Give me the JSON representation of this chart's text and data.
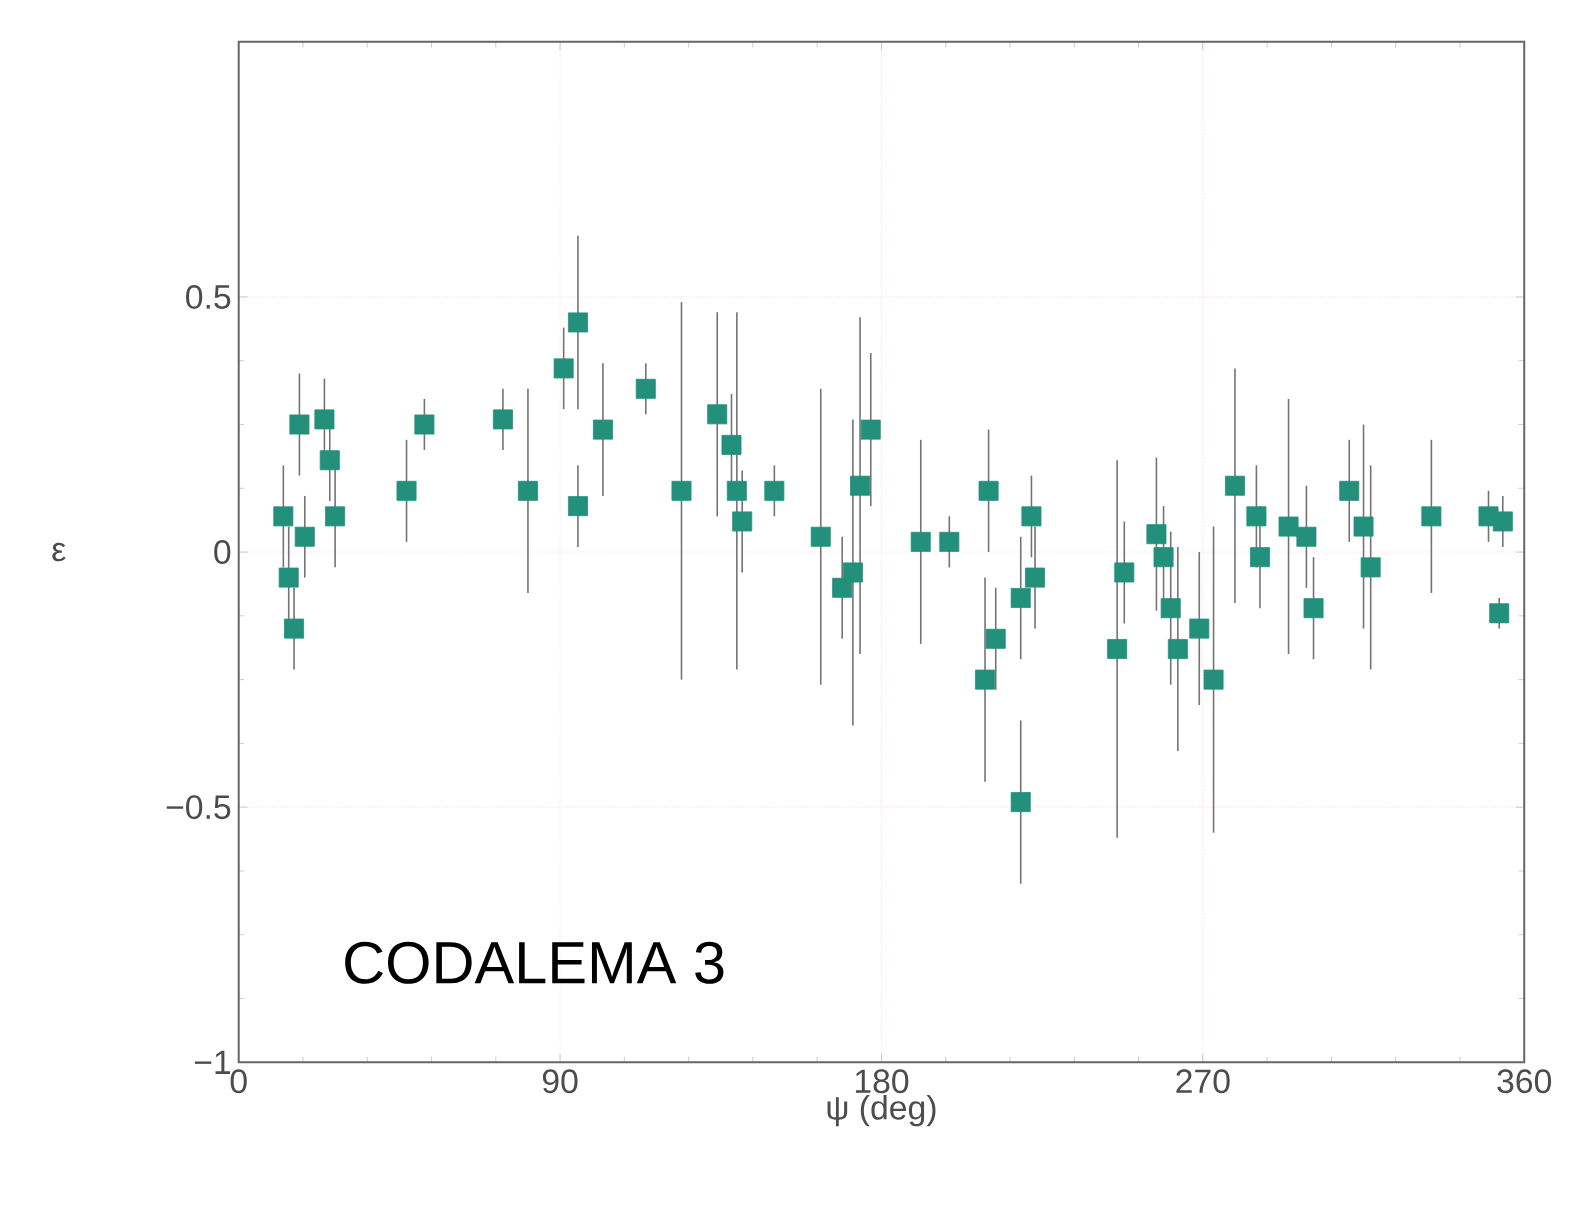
{
  "chart_data": {
    "type": "scatter",
    "xlabel": "ψ (deg)",
    "ylabel": "ε",
    "xlim": [
      0,
      360
    ],
    "xticks": [
      0,
      90,
      180,
      270,
      360
    ],
    "ylim": [
      -1,
      1
    ],
    "yticks": [
      {
        "value": -1,
        "label": "−1"
      },
      {
        "value": -0.5,
        "label": "−0.5"
      },
      0,
      0.5
    ],
    "grid": true,
    "marker": "square",
    "annotations": [
      "CODALEMA 3"
    ],
    "series": [
      {
        "color": "#23907c",
        "x": [
          12.5,
          14,
          15.5,
          17,
          18.5,
          24,
          25.5,
          27,
          47,
          52,
          74,
          81,
          91,
          95,
          95,
          102,
          114,
          124,
          134,
          138,
          139.5,
          141,
          150,
          163,
          169,
          172,
          174,
          177,
          191,
          199,
          210,
          209,
          212,
          219,
          222,
          223,
          219,
          246,
          248,
          257,
          259,
          261,
          263,
          269,
          273,
          279,
          285,
          286,
          294,
          299,
          301,
          311,
          315,
          317,
          334,
          350,
          354,
          353
        ],
        "values": [
          0.07,
          -0.05,
          -0.15,
          0.25,
          0.03,
          0.26,
          0.18,
          0.07,
          0.12,
          0.25,
          0.26,
          0.12,
          0.36,
          0.45,
          0.09,
          0.24,
          0.32,
          0.12,
          0.27,
          0.21,
          0.12,
          0.06,
          0.12,
          0.03,
          -0.07,
          -0.04,
          0.13,
          0.24,
          0.02,
          0.02,
          0.12,
          -0.25,
          -0.17,
          -0.09,
          0.07,
          -0.05,
          -0.49,
          -0.19,
          -0.04,
          0.035,
          -0.01,
          -0.11,
          -0.19,
          -0.15,
          -0.25,
          0.13,
          0.07,
          -0.01,
          0.05,
          0.03,
          -0.11,
          0.12,
          0.05,
          -0.03,
          0.07,
          0.07,
          0.06,
          -0.12
        ],
        "errors": [
          0.1,
          0.1,
          0.08,
          0.1,
          0.08,
          0.08,
          0.08,
          0.1,
          0.1,
          0.05,
          0.06,
          0.2,
          0.08,
          0.17,
          0.08,
          0.13,
          0.05,
          0.37,
          0.2,
          0.1,
          0.35,
          0.1,
          0.05,
          0.29,
          0.1,
          0.3,
          0.33,
          0.15,
          0.2,
          0.05,
          0.12,
          0.2,
          0.1,
          0.12,
          0.08,
          0.1,
          0.16,
          0.37,
          0.1,
          0.15,
          0.1,
          0.15,
          0.2,
          0.15,
          0.3,
          0.23,
          0.1,
          0.1,
          0.25,
          0.1,
          0.1,
          0.1,
          0.2,
          0.2,
          0.15,
          0.05,
          0.05,
          0.03
        ]
      }
    ]
  }
}
